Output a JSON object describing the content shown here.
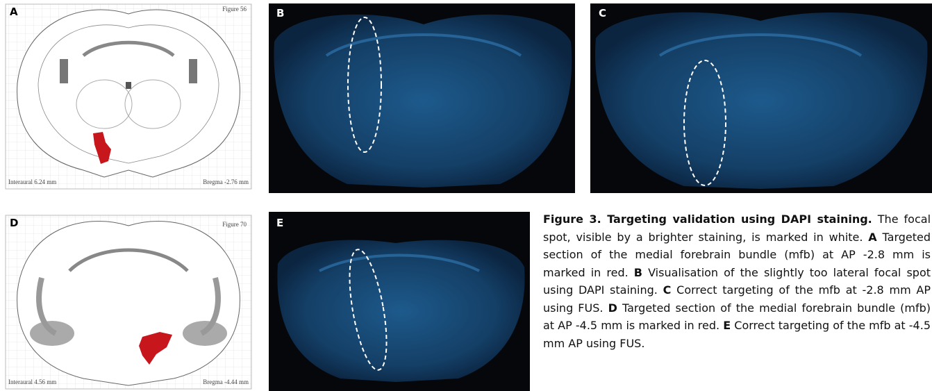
{
  "panels": [
    {
      "label": "A",
      "atlas_figure": "Figure 56",
      "interaural": "Interaural 6.24 mm",
      "bregma": "Bregma -2.76 mm"
    },
    {
      "label": "B"
    },
    {
      "label": "C"
    },
    {
      "label": "D",
      "atlas_figure": "Figure 70",
      "interaural": "Interaural 4.56 mm",
      "bregma": "Bregma -4.44 mm"
    },
    {
      "label": "E"
    }
  ],
  "caption": {
    "title": "Figure 3. Targeting validation using DAPI staining.",
    "intro": "The focal spot, visible by a brighter staining, is marked in white.",
    "items": [
      {
        "label": "A",
        "text": "Targeted section of the medial forebrain bundle (mfb) at AP -2.8 mm is marked in red."
      },
      {
        "label": "B",
        "text": "Visualisation of the slightly too lateral focal spot using DAPI staining."
      },
      {
        "label": "C",
        "text": "Correct targeting of the mfb at -2.8 mm AP using FUS."
      },
      {
        "label": "D",
        "text": "Targeted section of the medial forebrain bundle (mfb) at AP -4.5 mm is marked in red."
      },
      {
        "label": "E",
        "text": "Correct targeting of the mfb at -4.5 mm AP using FUS."
      }
    ]
  }
}
